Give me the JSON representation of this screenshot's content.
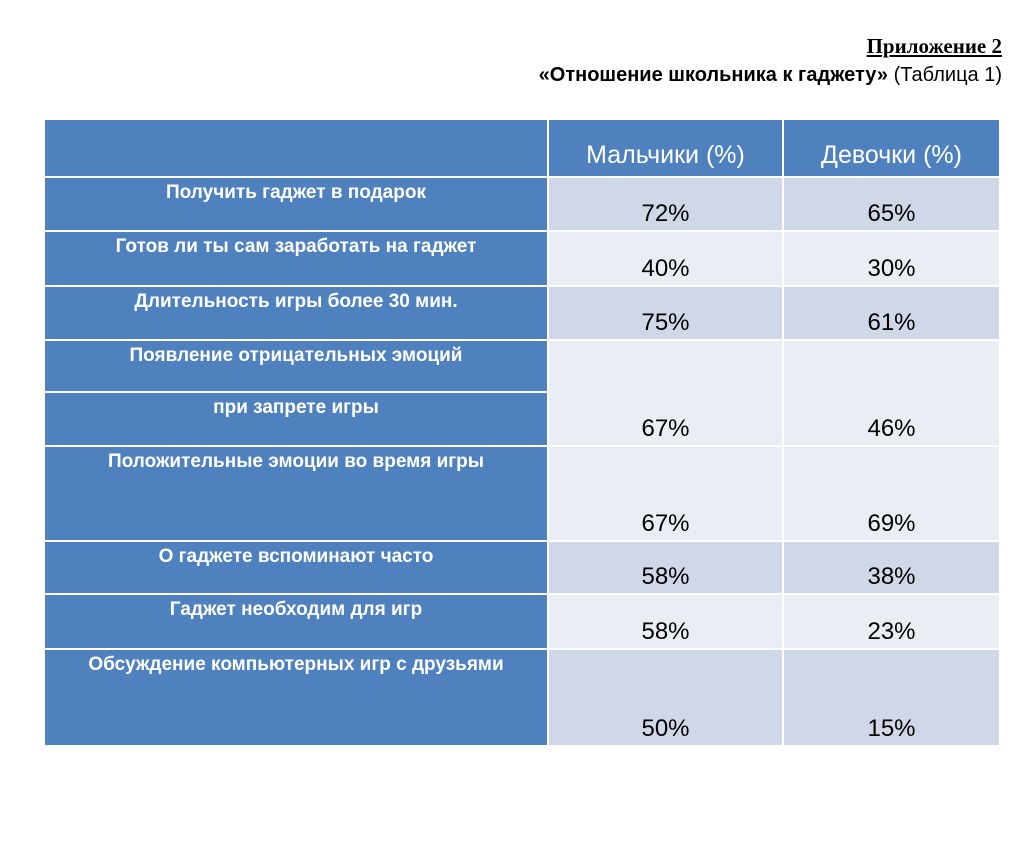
{
  "header": {
    "appendix": "Приложение 2",
    "title": "«Отношение школьника к гаджету»",
    "table_ref": "(Таблица 1)"
  },
  "table": {
    "columns": [
      "",
      "Мальчики (%)",
      "Девочки (%)"
    ],
    "rows": [
      {
        "label": "Получить гаджет в подарок",
        "boys": "72%",
        "girls": "65%"
      },
      {
        "label": "Готов ли ты сам заработать на гаджет",
        "boys": "40%",
        "girls": "30%"
      },
      {
        "label": "Длительность игры более 30 мин.",
        "boys": "75%",
        "girls": "61%"
      },
      {
        "label": "Появление отрицательных эмоций",
        "label2": "при запрете игры",
        "boys": "67%",
        "girls": "46%"
      },
      {
        "label": "Положительные эмоции во время игры",
        "boys": "67%",
        "girls": "69%"
      },
      {
        "label": "О гаджете вспоминают часто",
        "boys": "58%",
        "girls": "38%"
      },
      {
        "label": "Гаджет необходим для игр",
        "boys": "58%",
        "girls": "23%"
      },
      {
        "label": "Обсуждение компьютерных игр с друзьями",
        "boys": "50%",
        "girls": "15%"
      }
    ]
  },
  "colors": {
    "header_fill": "#4e81bd",
    "row_even_fill": "#d0d8e8",
    "row_odd_fill": "#e9edf4"
  }
}
